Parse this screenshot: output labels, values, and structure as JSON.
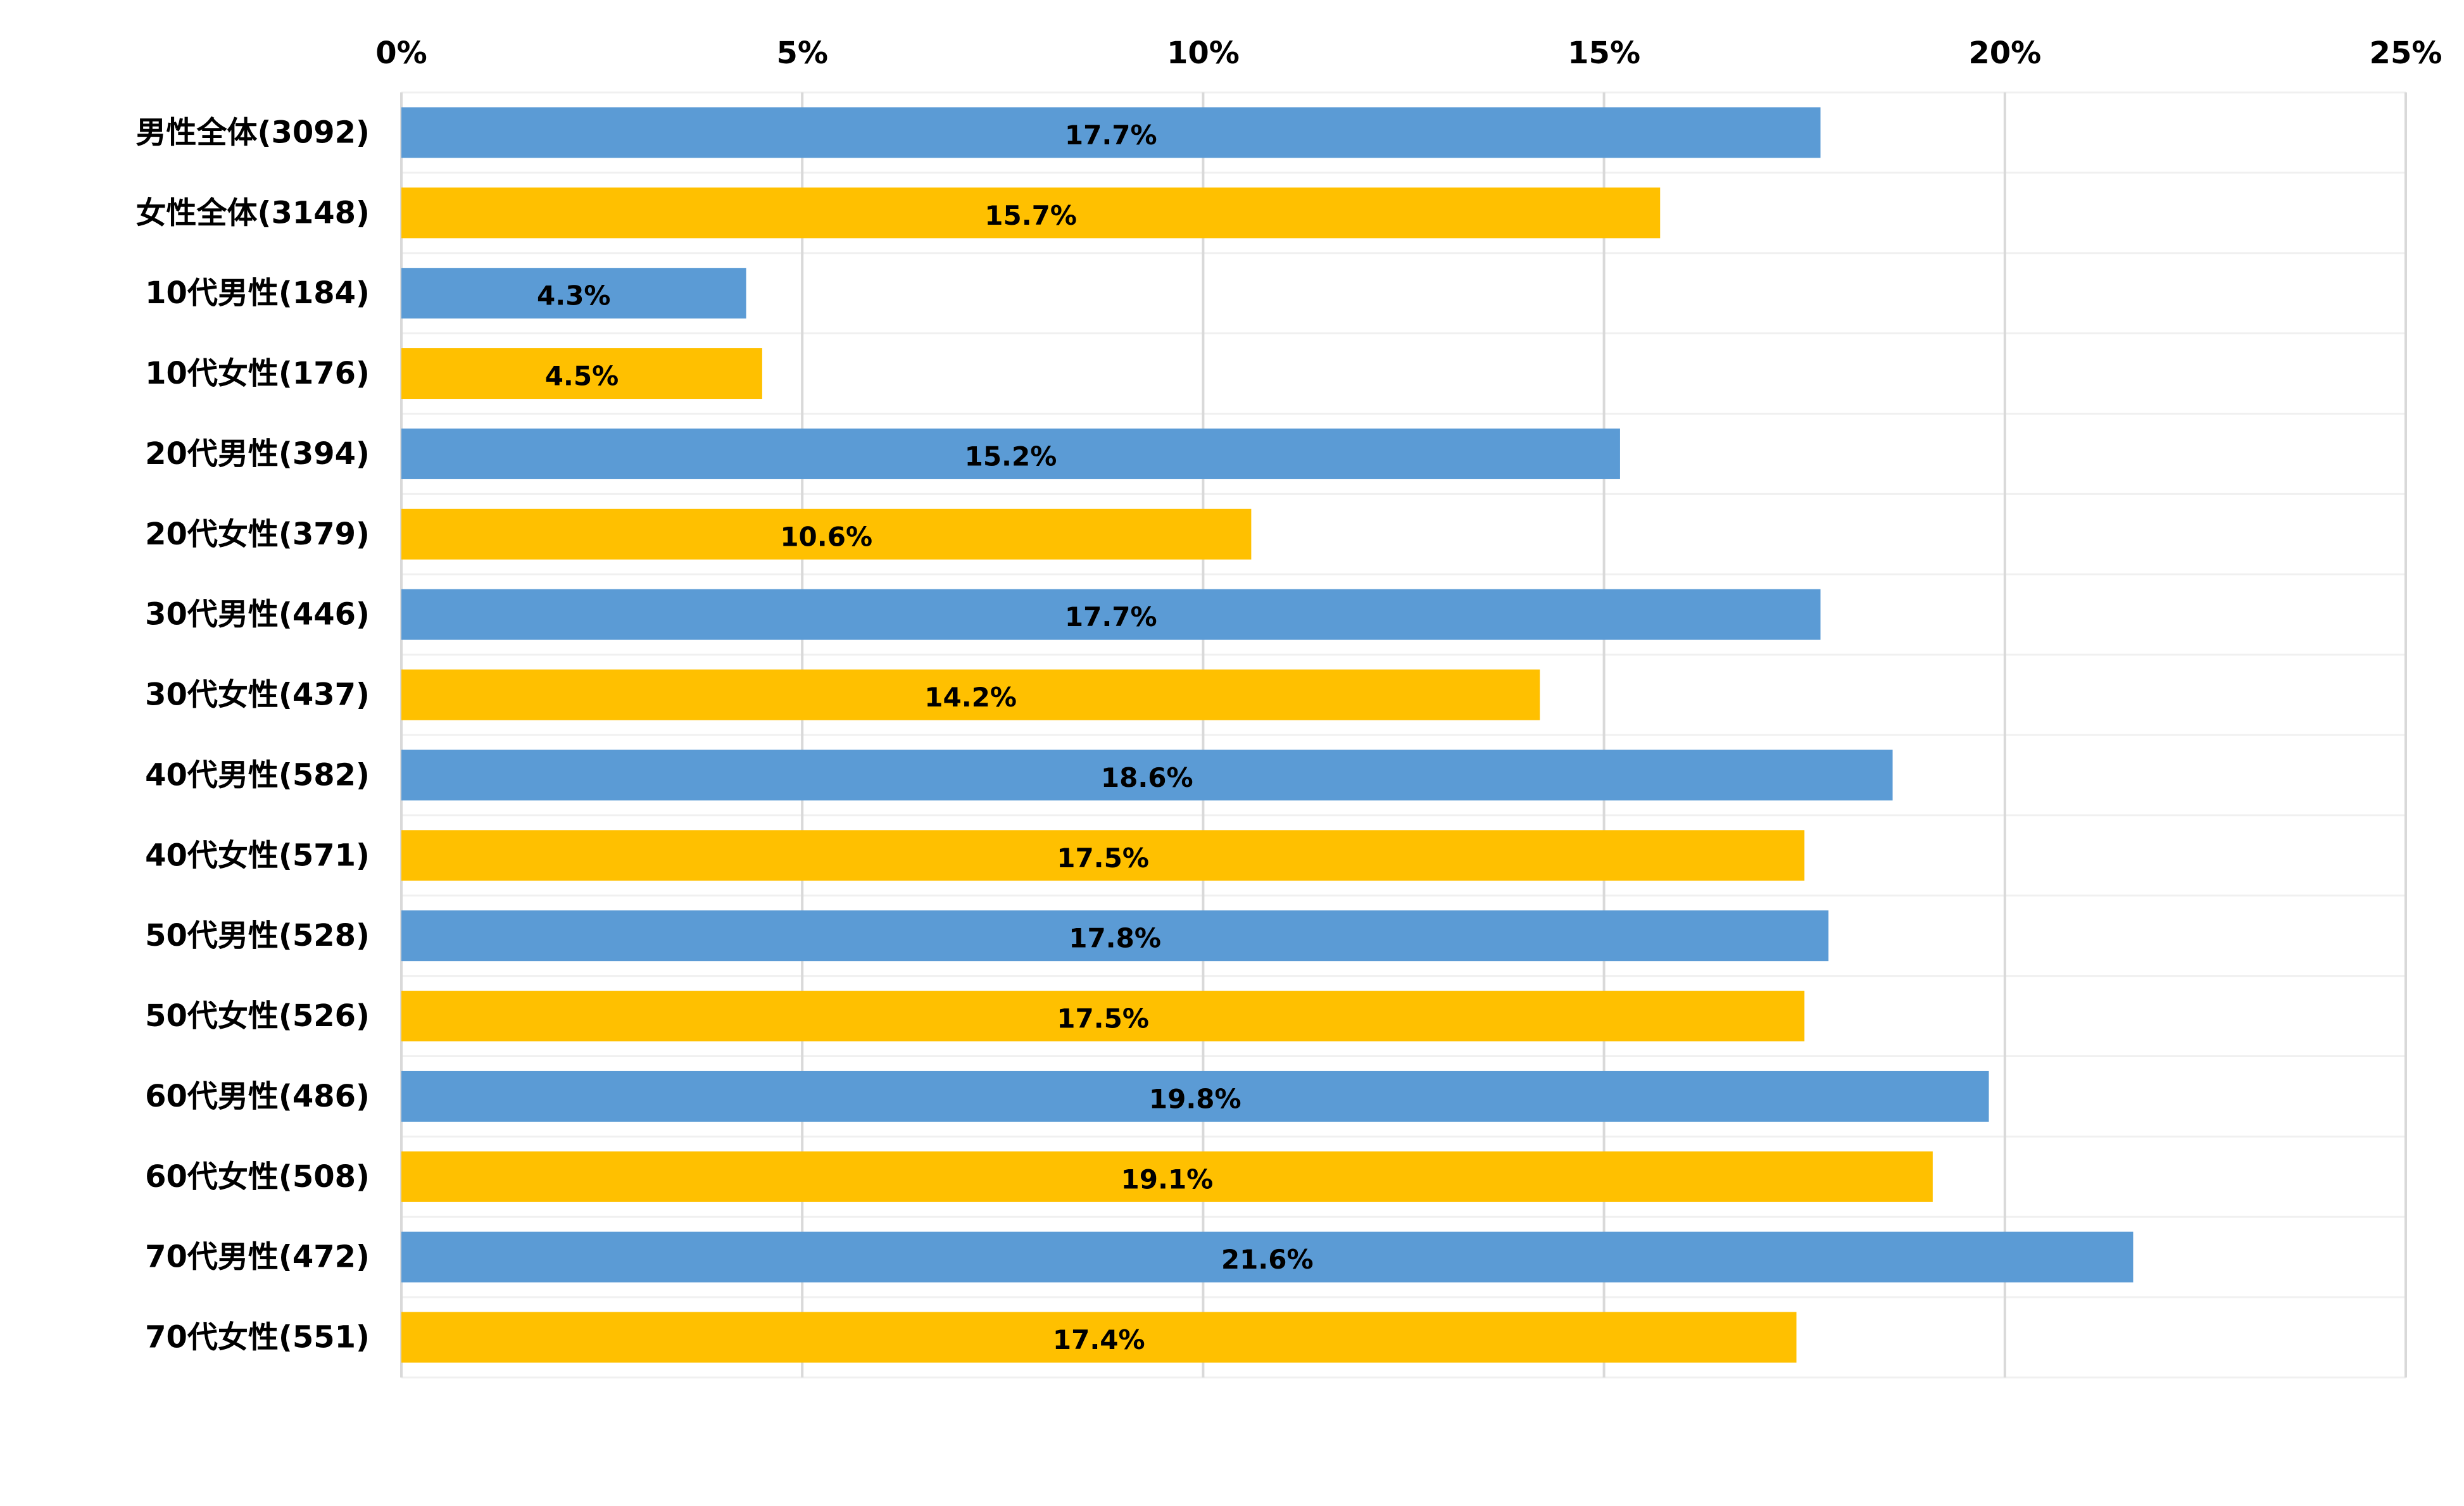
{
  "chart_data": {
    "type": "bar",
    "orientation": "horizontal",
    "title": "",
    "xlabel": "",
    "ylabel": "",
    "xlim": [
      0,
      25
    ],
    "x_ticks": [
      "0%",
      "5%",
      "10%",
      "15%",
      "20%",
      "25%"
    ],
    "tick_values": [
      0,
      5,
      10,
      15,
      20,
      25
    ],
    "x_axis_position": "top",
    "grid": true,
    "legend": "none",
    "colors": {
      "male": "#5B9BD5",
      "female": "#FFC000",
      "grid": "#D9D9D9",
      "minor_grid": "#F0F0F0"
    },
    "categories": [
      "男性全体(3092)",
      "女性全体(3148)",
      "10代男性(184)",
      "10代女性(176)",
      "20代男性(394)",
      "20代女性(379)",
      "30代男性(446)",
      "30代女性(437)",
      "40代男性(582)",
      "40代女性(571)",
      "50代男性(528)",
      "50代女性(526)",
      "60代男性(486)",
      "60代女性(508)",
      "70代男性(472)",
      "70代女性(551)"
    ],
    "values": [
      17.7,
      15.7,
      4.3,
      4.5,
      15.2,
      10.6,
      17.7,
      14.2,
      18.6,
      17.5,
      17.8,
      17.5,
      19.8,
      19.1,
      21.6,
      17.4
    ],
    "data_labels": [
      "17.7%",
      "15.7%",
      "4.3%",
      "4.5%",
      "15.2%",
      "10.6%",
      "17.7%",
      "14.2%",
      "18.6%",
      "17.5%",
      "17.8%",
      "17.5%",
      "19.8%",
      "19.1%",
      "21.6%",
      "17.4%"
    ],
    "bar_groups": [
      "male",
      "female",
      "male",
      "female",
      "male",
      "female",
      "male",
      "female",
      "male",
      "female",
      "male",
      "female",
      "male",
      "female",
      "male",
      "female"
    ]
  }
}
